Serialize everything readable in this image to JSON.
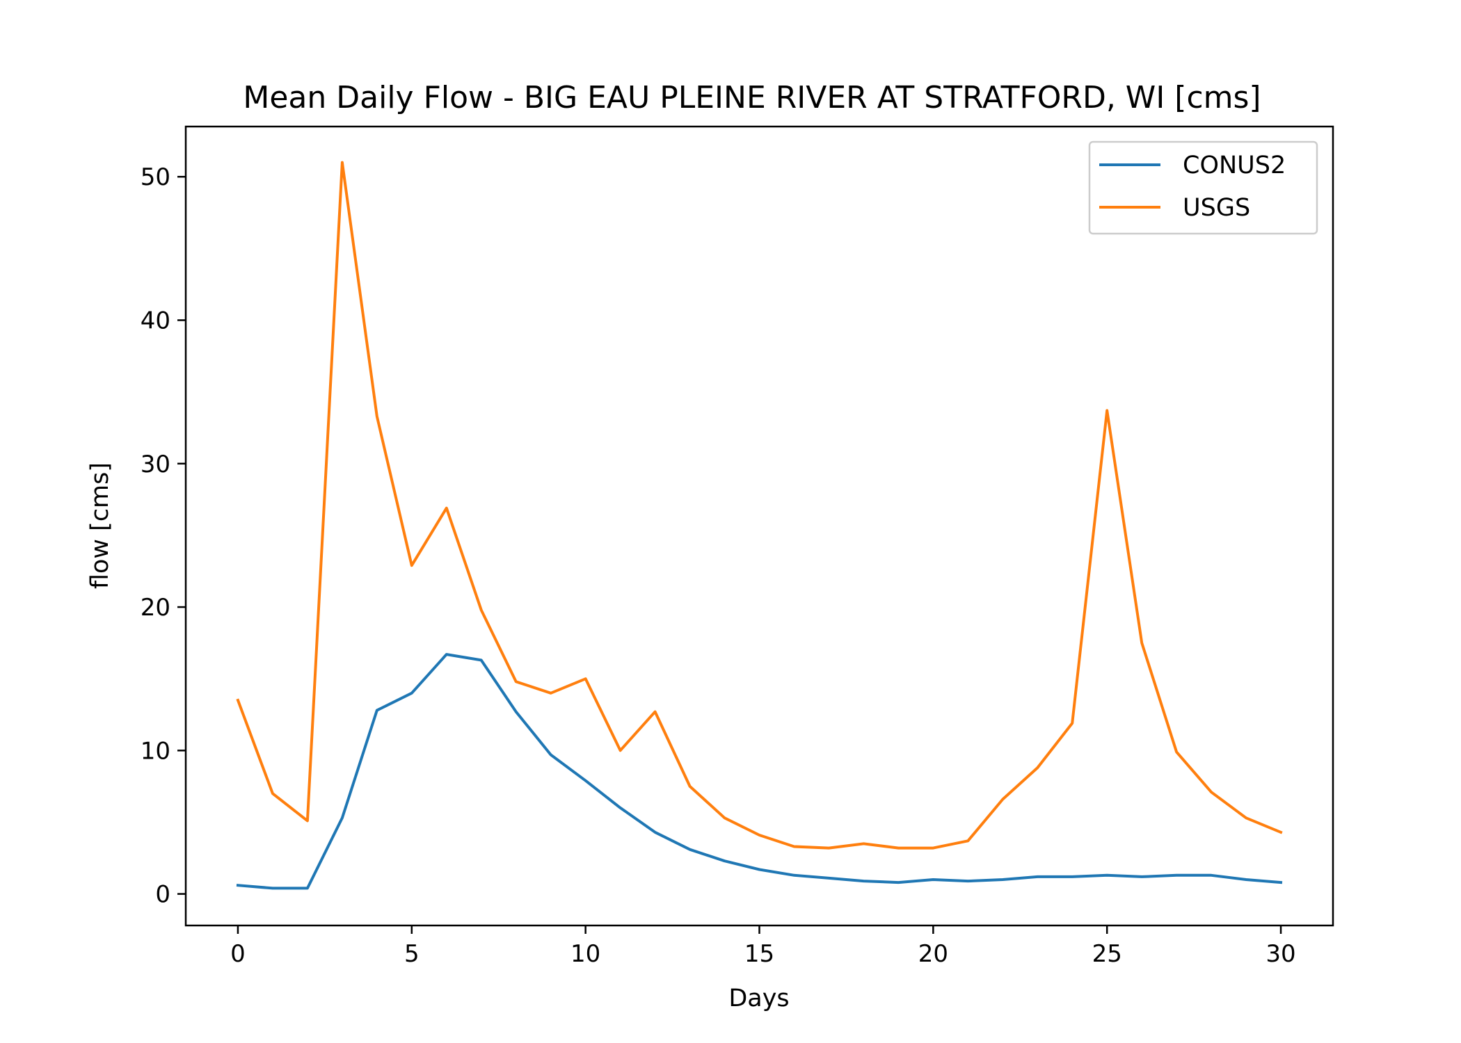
{
  "chart_data": {
    "type": "line",
    "title": "Mean Daily Flow - BIG EAU PLEINE RIVER AT STRATFORD, WI [cms]",
    "xlabel": "Days",
    "ylabel": "flow [cms]",
    "xlim": [
      -1.5,
      31.5
    ],
    "ylim": [
      -2.2,
      53.5
    ],
    "xticks": [
      0,
      5,
      10,
      15,
      20,
      25,
      30
    ],
    "yticks": [
      0,
      10,
      20,
      30,
      40,
      50
    ],
    "grid": false,
    "legend_position": "top-right",
    "x": [
      0,
      1,
      2,
      3,
      4,
      5,
      6,
      7,
      8,
      9,
      10,
      11,
      12,
      13,
      14,
      15,
      16,
      17,
      18,
      19,
      20,
      21,
      22,
      23,
      24,
      25,
      26,
      27,
      28,
      29,
      30
    ],
    "series": [
      {
        "name": "CONUS2",
        "color": "#1f77b4",
        "values": [
          0.6,
          0.4,
          0.4,
          5.3,
          12.8,
          14.0,
          16.7,
          16.3,
          12.7,
          9.7,
          7.9,
          6.0,
          4.3,
          3.1,
          2.3,
          1.7,
          1.3,
          1.1,
          0.9,
          0.8,
          1.0,
          0.9,
          1.0,
          1.2,
          1.2,
          1.3,
          1.2,
          1.3,
          1.3,
          1.0,
          0.8
        ]
      },
      {
        "name": "USGS",
        "color": "#ff7f0e",
        "values": [
          13.5,
          7.0,
          5.1,
          51.0,
          33.3,
          22.9,
          26.9,
          19.8,
          14.8,
          14.0,
          15.0,
          10.0,
          12.7,
          7.5,
          5.3,
          4.1,
          3.3,
          3.2,
          3.5,
          3.2,
          3.2,
          3.7,
          6.6,
          8.8,
          11.9,
          33.7,
          17.5,
          9.9,
          7.1,
          5.3,
          4.3
        ]
      }
    ]
  }
}
